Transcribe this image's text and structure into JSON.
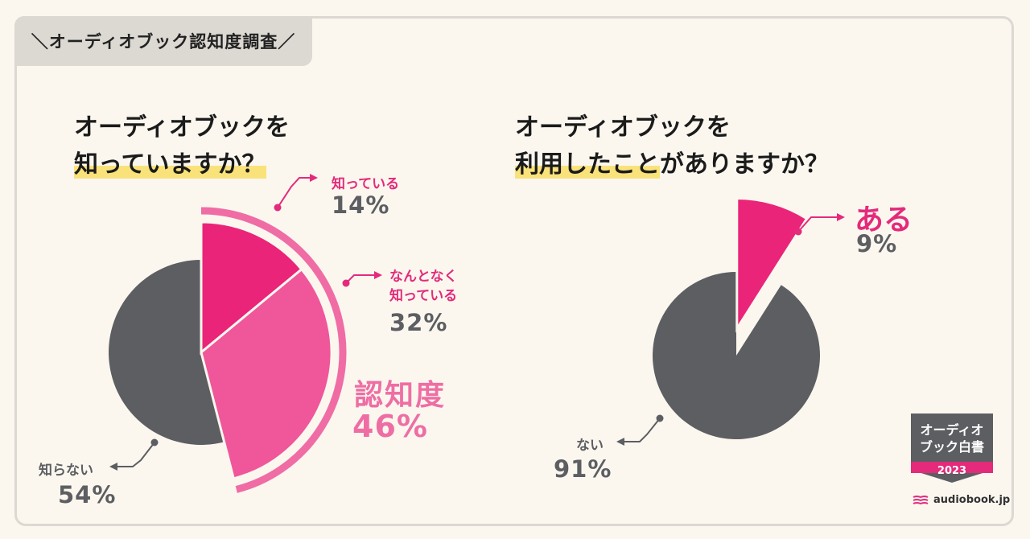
{
  "header": {
    "title": "＼オーディオブック認知度調査／"
  },
  "left": {
    "question_line1": "オーディオブックを",
    "question_line2": "知っていますか？"
  },
  "right": {
    "question_line1": "オーディオブックを",
    "question_line2_highlight": "利用したこと",
    "question_line2_rest": "がありますか？"
  },
  "chart_data": [
    {
      "type": "pie",
      "slices": [
        {
          "label": "知っている",
          "value": 14,
          "display": "14%",
          "color": "#ea2478"
        },
        {
          "label": "なんとなく\n知っている",
          "value": 32,
          "display": "32%",
          "color": "#f0569a"
        },
        {
          "label": "知らない",
          "value": 54,
          "display": "54%",
          "color": "#5d5e62"
        }
      ],
      "aggregate": {
        "label": "認知度",
        "value": 46,
        "display": "46%",
        "color": "#f06ca4"
      }
    },
    {
      "type": "pie",
      "slices": [
        {
          "label": "ある",
          "value": 9,
          "display": "9%",
          "color": "#ea2478"
        },
        {
          "label": "ない",
          "value": 91,
          "display": "91%",
          "color": "#5d5e62"
        }
      ]
    }
  ],
  "badge": {
    "line1": "オーディオ",
    "line2": "ブック白書",
    "year": "2023"
  },
  "brand": {
    "name": "audiobook.jp"
  }
}
